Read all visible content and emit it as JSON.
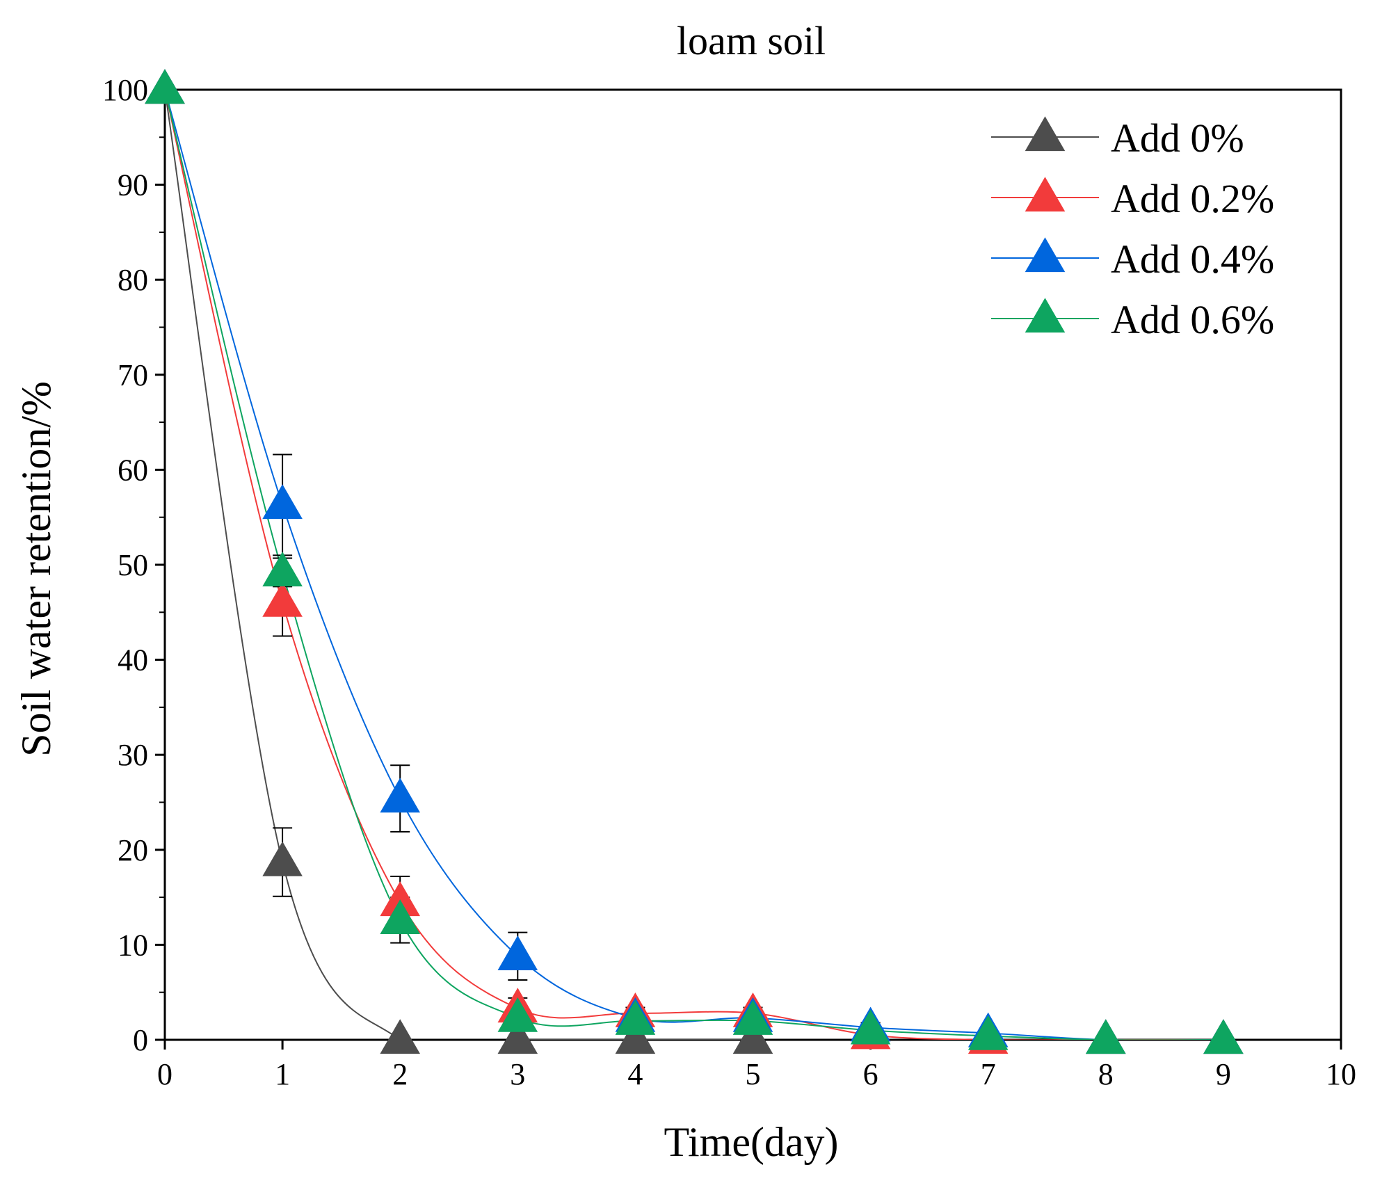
{
  "chart_data": {
    "type": "line",
    "title": "loam soil",
    "xlabel": "Time(day)",
    "ylabel": "Soil water retention/%",
    "xlim": [
      0,
      10
    ],
    "ylim": [
      0,
      100
    ],
    "x_ticks": [
      "0",
      "1",
      "2",
      "3",
      "4",
      "5",
      "6",
      "7",
      "8",
      "9",
      "10"
    ],
    "y_ticks": [
      "0",
      "10",
      "20",
      "30",
      "40",
      "50",
      "60",
      "70",
      "80",
      "90",
      "100"
    ],
    "grid": false,
    "legend_position": "top-right",
    "series": [
      {
        "name": "Add 0%",
        "color": "#4d4d4d",
        "x": [
          0,
          1,
          2,
          3,
          4,
          5
        ],
        "y": [
          100,
          18.7,
          0,
          0,
          0,
          0
        ],
        "err": [
          0,
          3.6,
          0,
          0,
          0,
          0
        ]
      },
      {
        "name": "Add 0.2%",
        "color": "#f23b3b",
        "x": [
          0,
          1,
          2,
          3,
          4,
          5,
          6,
          7,
          8,
          9
        ],
        "y": [
          100,
          46,
          14.5,
          3.3,
          2.8,
          2.8,
          0.5,
          0,
          0,
          0
        ],
        "err": [
          0,
          3.5,
          2.7,
          1.1,
          0.6,
          0.6,
          0,
          0,
          0,
          0
        ]
      },
      {
        "name": "Add 0.4%",
        "color": "#0066dd",
        "x": [
          0,
          1,
          2,
          3,
          4,
          5,
          6,
          7,
          8,
          9
        ],
        "y": [
          100,
          56.3,
          25.4,
          8.8,
          2.3,
          2.3,
          1.3,
          0.7,
          0,
          0
        ],
        "err": [
          0,
          5.3,
          3.5,
          2.5,
          0.5,
          0.5,
          0.5,
          0.3,
          0,
          0
        ]
      },
      {
        "name": "Add 0.6%",
        "color": "#0ea560",
        "x": [
          0,
          1,
          2,
          3,
          4,
          5,
          6,
          7,
          8,
          9
        ],
        "y": [
          100,
          49.2,
          12.6,
          2.3,
          2,
          2,
          1,
          0.4,
          0,
          0
        ],
        "err": [
          0,
          1.5,
          2.4,
          1,
          0.5,
          0.5,
          0.4,
          0.2,
          0,
          0
        ]
      }
    ]
  }
}
